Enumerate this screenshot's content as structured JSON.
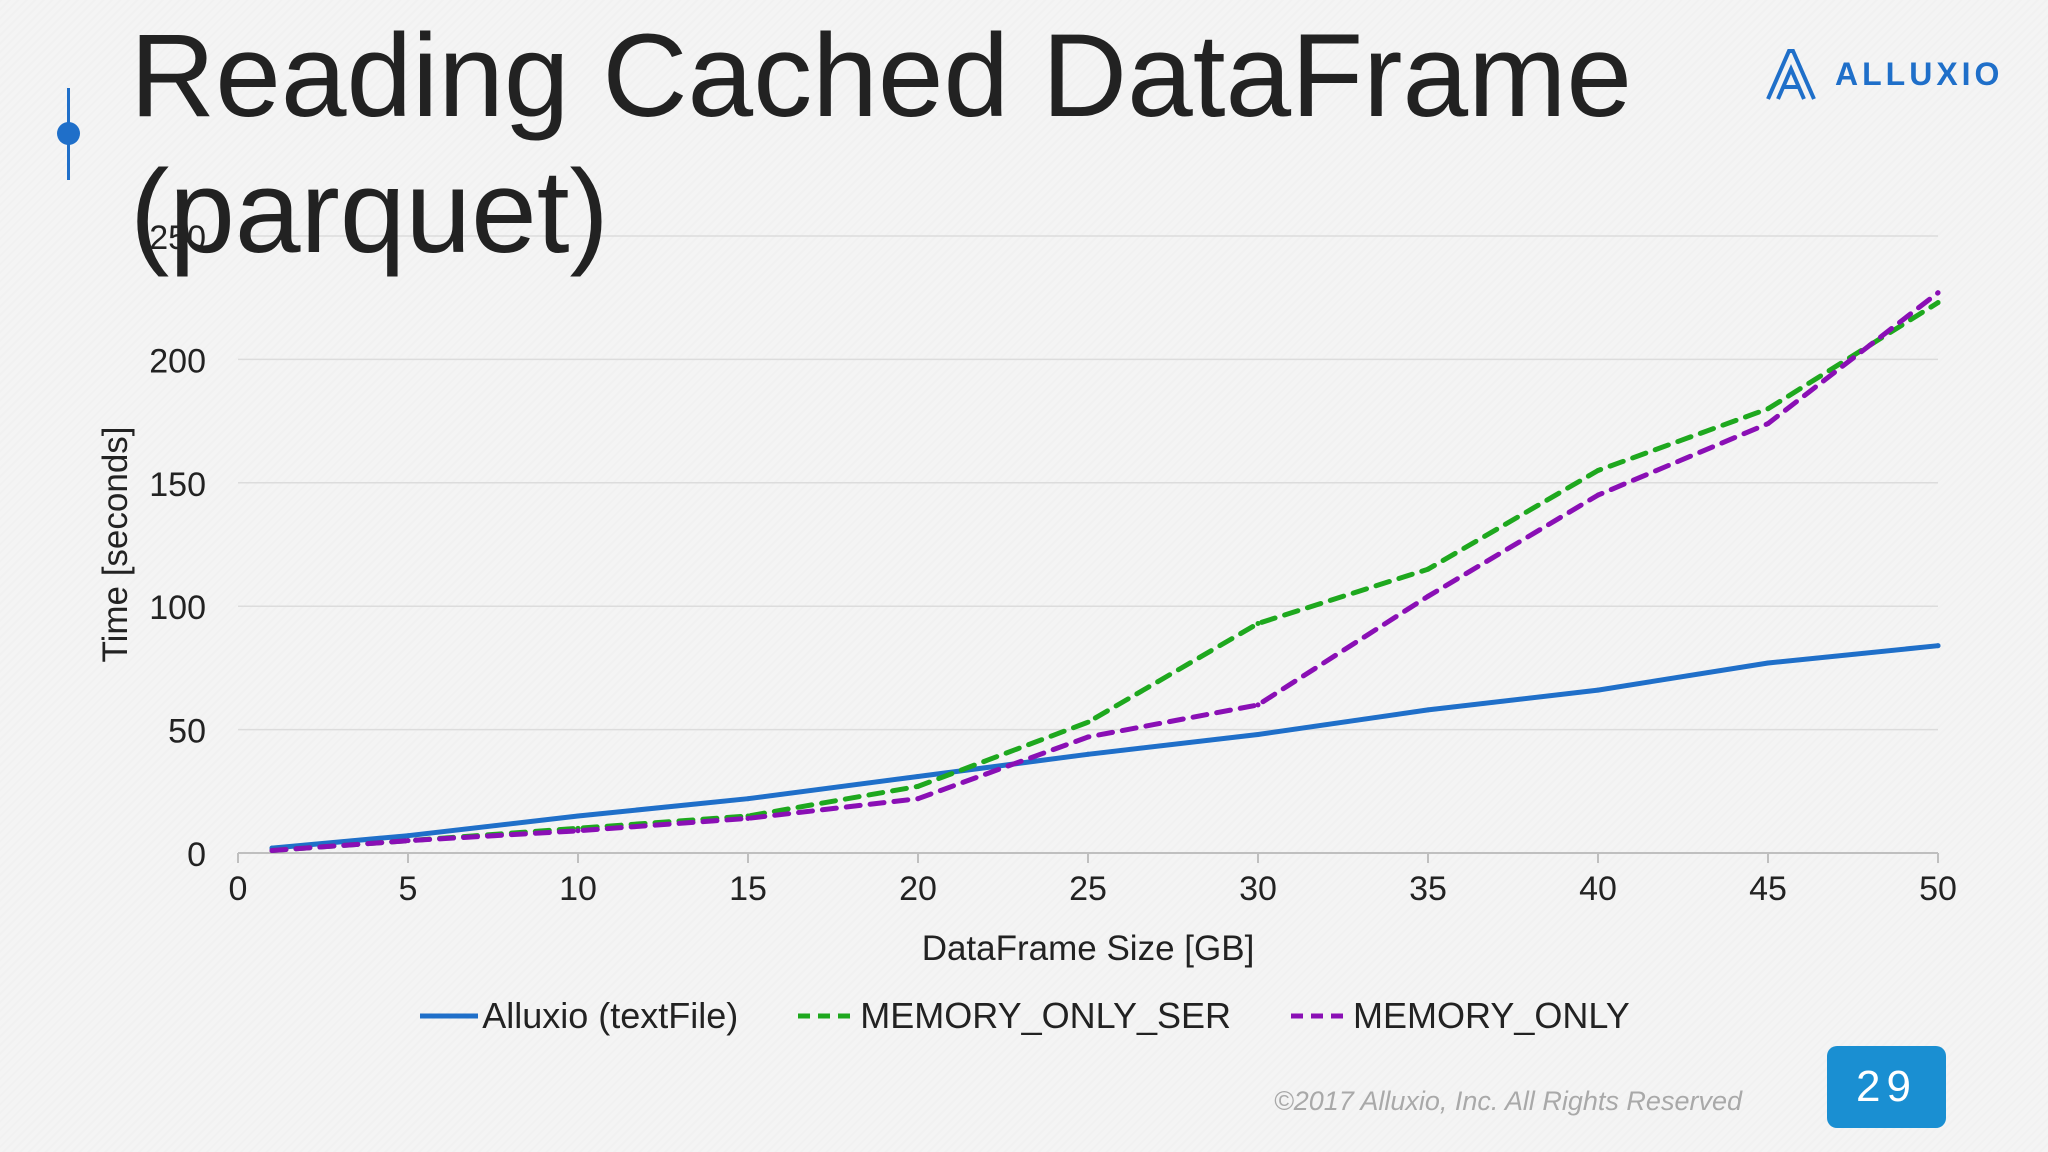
{
  "slide": {
    "title": "Reading Cached DataFrame (parquet)",
    "logo_text": "ALLUXIO",
    "footer": "©2017 Alluxio, Inc. All Rights Reserved",
    "page_number": "29",
    "accent_color": "#1f6fc9",
    "badge_color": "#1a8fd2"
  },
  "chart_data": {
    "type": "line",
    "xlabel": "DataFrame Size [GB]",
    "ylabel": "Time [seconds]",
    "xlim": [
      0,
      50
    ],
    "ylim": [
      0,
      250
    ],
    "xticks": [
      0,
      5,
      10,
      15,
      20,
      25,
      30,
      35,
      40,
      45,
      50
    ],
    "yticks": [
      0,
      50,
      100,
      150,
      200,
      250
    ],
    "grid": "horizontal",
    "legend_position": "bottom",
    "series": [
      {
        "name": "Alluxio (textFile)",
        "color": "#1f6fc9",
        "dash": "solid",
        "x": [
          1,
          5,
          10,
          15,
          20,
          25,
          30,
          35,
          40,
          45,
          50
        ],
        "y": [
          2,
          7,
          15,
          22,
          31,
          40,
          48,
          58,
          66,
          77,
          84
        ]
      },
      {
        "name": "MEMORY_ONLY_SER",
        "color": "#1ea81e",
        "dash": "dashed",
        "x": [
          1,
          5,
          10,
          15,
          20,
          25,
          30,
          35,
          40,
          45,
          50
        ],
        "y": [
          1,
          5,
          10,
          15,
          27,
          53,
          93,
          115,
          155,
          180,
          223
        ]
      },
      {
        "name": "MEMORY_ONLY",
        "color": "#8a0fb5",
        "dash": "dashed",
        "x": [
          1,
          5,
          10,
          15,
          20,
          25,
          30,
          35,
          40,
          45,
          50
        ],
        "y": [
          1,
          5,
          9,
          14,
          22,
          47,
          60,
          104,
          145,
          174,
          227
        ]
      }
    ]
  }
}
